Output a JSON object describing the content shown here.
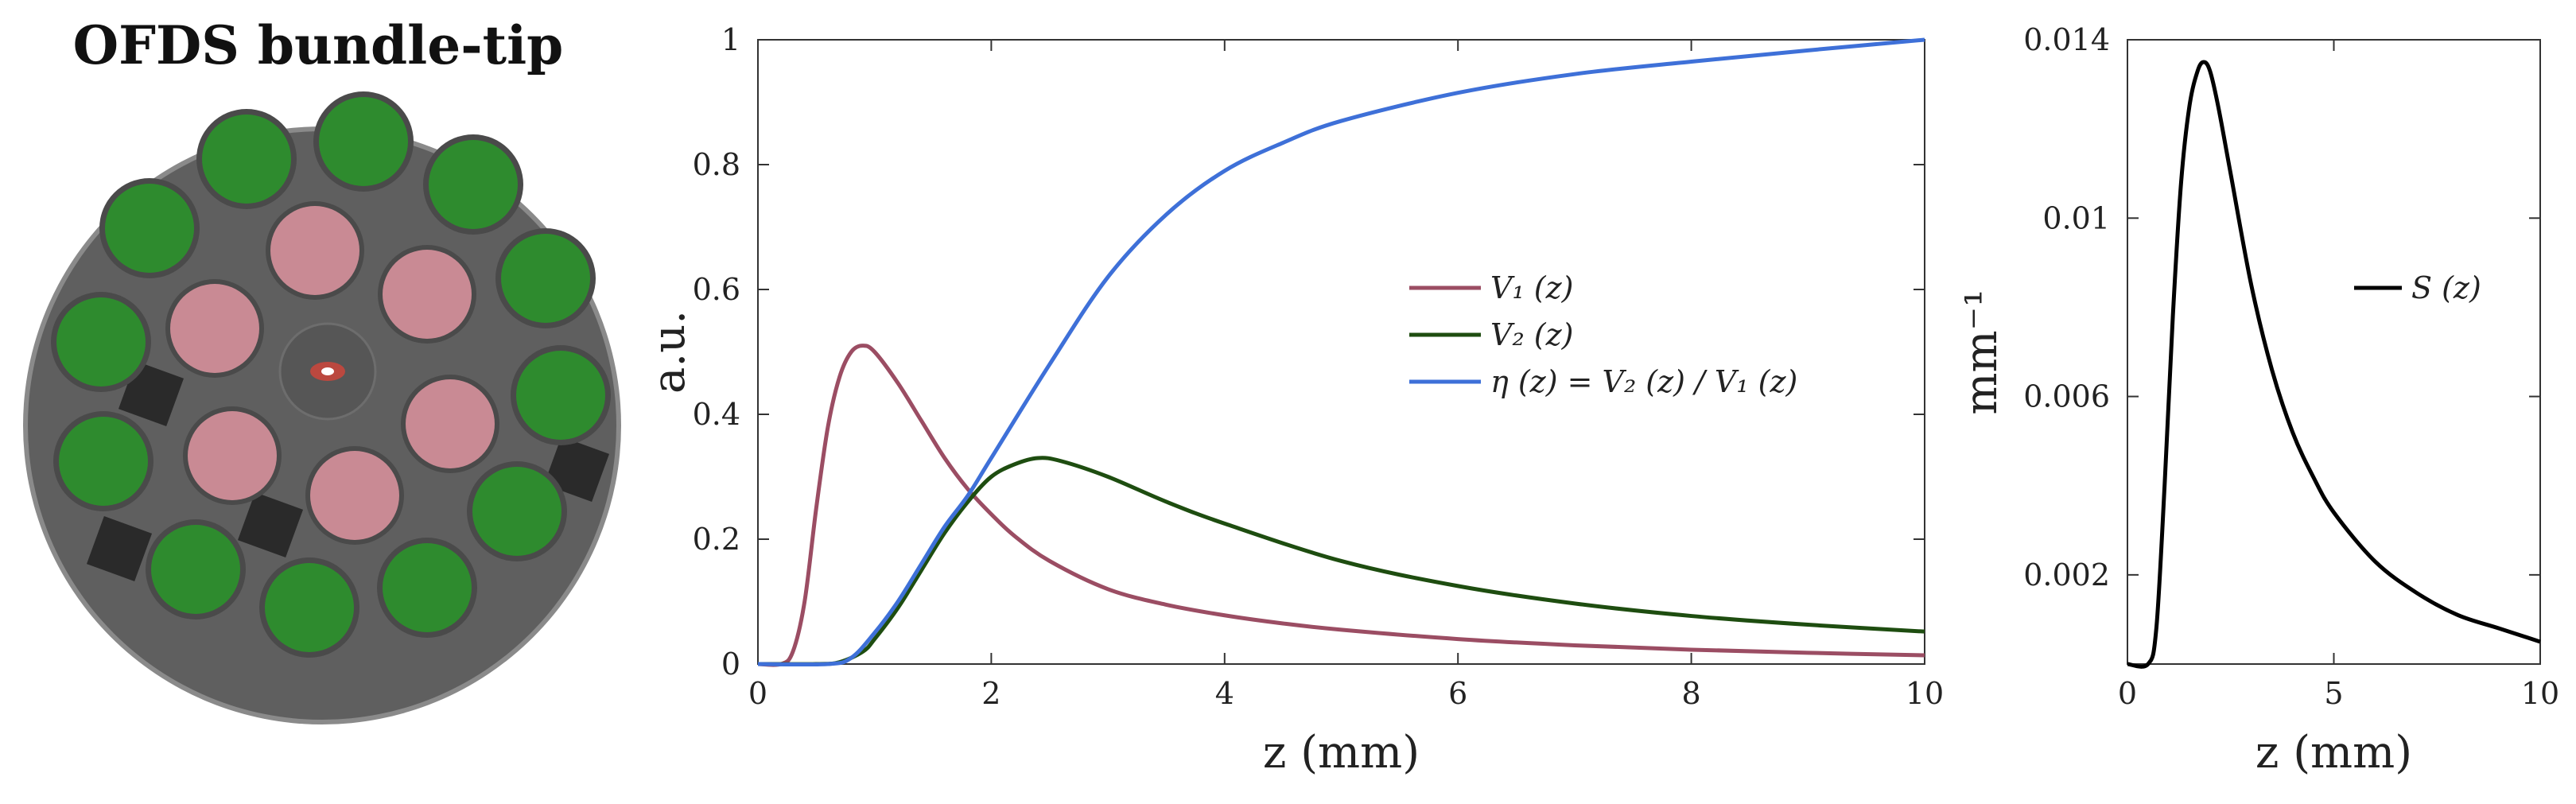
{
  "photo_panel": {
    "title": "OFDS bundle-tip",
    "colors": {
      "tip_background": "#5f5f5f",
      "tip_rim": "#8a8a8a",
      "collection_fiber": "#2e8b2e",
      "illumination_fiber": "#c98a94",
      "source_spot": "#ff4030",
      "marker": "#2a2a2a"
    },
    "icons": [
      "fiber-bundle-photo"
    ]
  },
  "chart_data": [
    {
      "type": "line",
      "title": "",
      "xlabel": "z (mm)",
      "ylabel": "a.u.",
      "xlim": [
        0,
        10
      ],
      "ylim": [
        0,
        1
      ],
      "xticks": [
        "0",
        "2",
        "4",
        "6",
        "8",
        "10"
      ],
      "yticks": [
        "0",
        "0.2",
        "0.4",
        "0.6",
        "0.8",
        "1"
      ],
      "grid": false,
      "legend_position": "right",
      "series": [
        {
          "name": "V₁ (z)",
          "color": "#9b4d63",
          "x": [
            0,
            0.2,
            0.3,
            0.4,
            0.5,
            0.6,
            0.7,
            0.8,
            0.9,
            1.0,
            1.2,
            1.4,
            1.6,
            1.8,
            2.0,
            2.2,
            2.5,
            3.0,
            3.5,
            4.0,
            4.5,
            5.0,
            6.0,
            7.0,
            8.0,
            9.0,
            10.0
          ],
          "values": [
            0,
            0,
            0.02,
            0.1,
            0.25,
            0.38,
            0.46,
            0.5,
            0.51,
            0.5,
            0.45,
            0.39,
            0.33,
            0.28,
            0.24,
            0.205,
            0.165,
            0.12,
            0.095,
            0.078,
            0.065,
            0.055,
            0.04,
            0.03,
            0.023,
            0.018,
            0.014
          ]
        },
        {
          "name": "V₂ (z)",
          "color": "#1e4d10",
          "x": [
            0,
            0.5,
            0.7,
            0.9,
            1.0,
            1.2,
            1.4,
            1.6,
            1.8,
            2.0,
            2.2,
            2.4,
            2.6,
            3.0,
            3.5,
            4.0,
            5.0,
            6.0,
            7.0,
            8.0,
            9.0,
            10.0
          ],
          "values": [
            0,
            0,
            0.003,
            0.02,
            0.04,
            0.09,
            0.15,
            0.21,
            0.26,
            0.3,
            0.32,
            0.33,
            0.325,
            0.3,
            0.26,
            0.225,
            0.165,
            0.125,
            0.097,
            0.077,
            0.063,
            0.052
          ]
        },
        {
          "name": "η (z) = V₂ (z) / V₁ (z)",
          "color": "#3e70d8",
          "x": [
            0,
            0.6,
            0.8,
            1.0,
            1.2,
            1.4,
            1.6,
            1.8,
            2.0,
            2.5,
            3.0,
            3.5,
            4.0,
            4.5,
            5.0,
            6.0,
            7.0,
            8.0,
            9.0,
            10.0
          ],
          "values": [
            0,
            0,
            0.01,
            0.05,
            0.1,
            0.16,
            0.22,
            0.27,
            0.33,
            0.48,
            0.62,
            0.72,
            0.79,
            0.835,
            0.87,
            0.915,
            0.945,
            0.965,
            0.983,
            1.0
          ]
        }
      ]
    },
    {
      "type": "line",
      "title": "",
      "xlabel": "z (mm)",
      "ylabel": "mm⁻¹",
      "xlim": [
        0,
        10
      ],
      "ylim": [
        0,
        0.014
      ],
      "xticks": [
        "0",
        "5",
        "10"
      ],
      "yticks": [
        "0.002",
        "0.006",
        "0.01",
        "0.014"
      ],
      "ytick_values": [
        0.002,
        0.006,
        0.01,
        0.014
      ],
      "grid": false,
      "legend_position": "right",
      "series": [
        {
          "name": "S (z)",
          "color": "#000000",
          "x": [
            0,
            0.5,
            0.7,
            0.9,
            1.1,
            1.3,
            1.5,
            1.7,
            1.85,
            2.0,
            2.2,
            2.5,
            3.0,
            3.5,
            4.0,
            4.5,
            5.0,
            6.0,
            7.0,
            8.0,
            9.0,
            10.0
          ],
          "values": [
            0,
            0,
            0.0008,
            0.004,
            0.0078,
            0.0108,
            0.0125,
            0.0133,
            0.0135,
            0.0133,
            0.0125,
            0.011,
            0.0085,
            0.0066,
            0.0052,
            0.0042,
            0.0034,
            0.0023,
            0.0016,
            0.0011,
            0.0008,
            0.0005
          ]
        }
      ]
    }
  ]
}
